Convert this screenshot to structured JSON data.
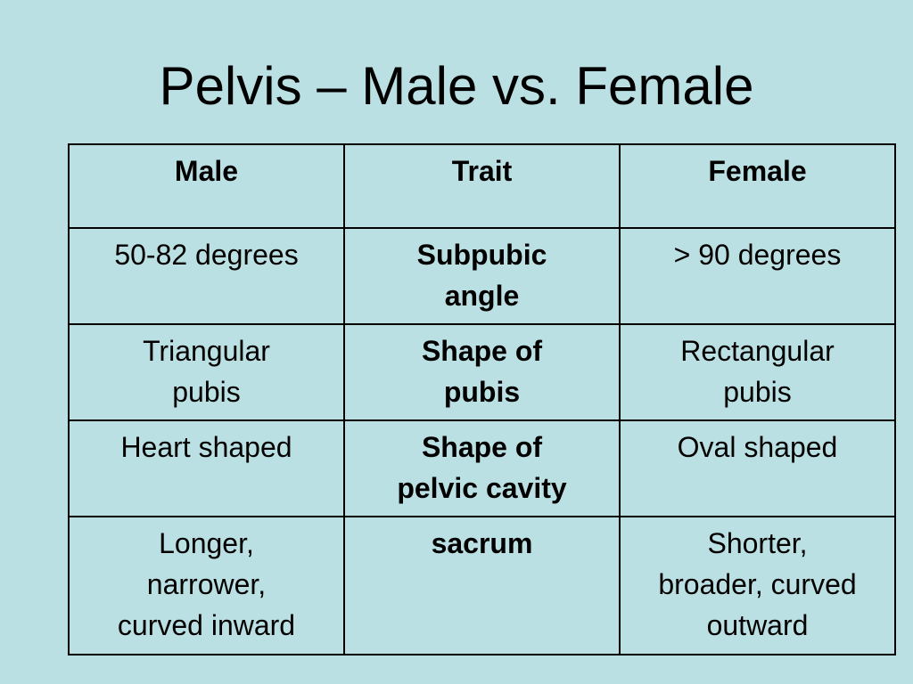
{
  "title": "Pelvis – Male vs. Female",
  "table": {
    "header": [
      "Male",
      "Trait",
      "Female"
    ],
    "rows": [
      [
        [
          "50-82 degrees"
        ],
        [
          "Subpubic",
          "angle"
        ],
        [
          "> 90 degrees"
        ]
      ],
      [
        [
          "Triangular",
          "pubis"
        ],
        [
          "Shape of",
          "pubis"
        ],
        [
          "Rectangular",
          "pubis"
        ]
      ],
      [
        [
          "Heart shaped"
        ],
        [
          "Shape of",
          "pelvic cavity"
        ],
        [
          "Oval shaped"
        ]
      ],
      [
        [
          "Longer,",
          "narrower,",
          "curved inward"
        ],
        [
          "sacrum"
        ],
        [
          "Shorter,",
          "broader, curved",
          "outward"
        ]
      ]
    ]
  }
}
